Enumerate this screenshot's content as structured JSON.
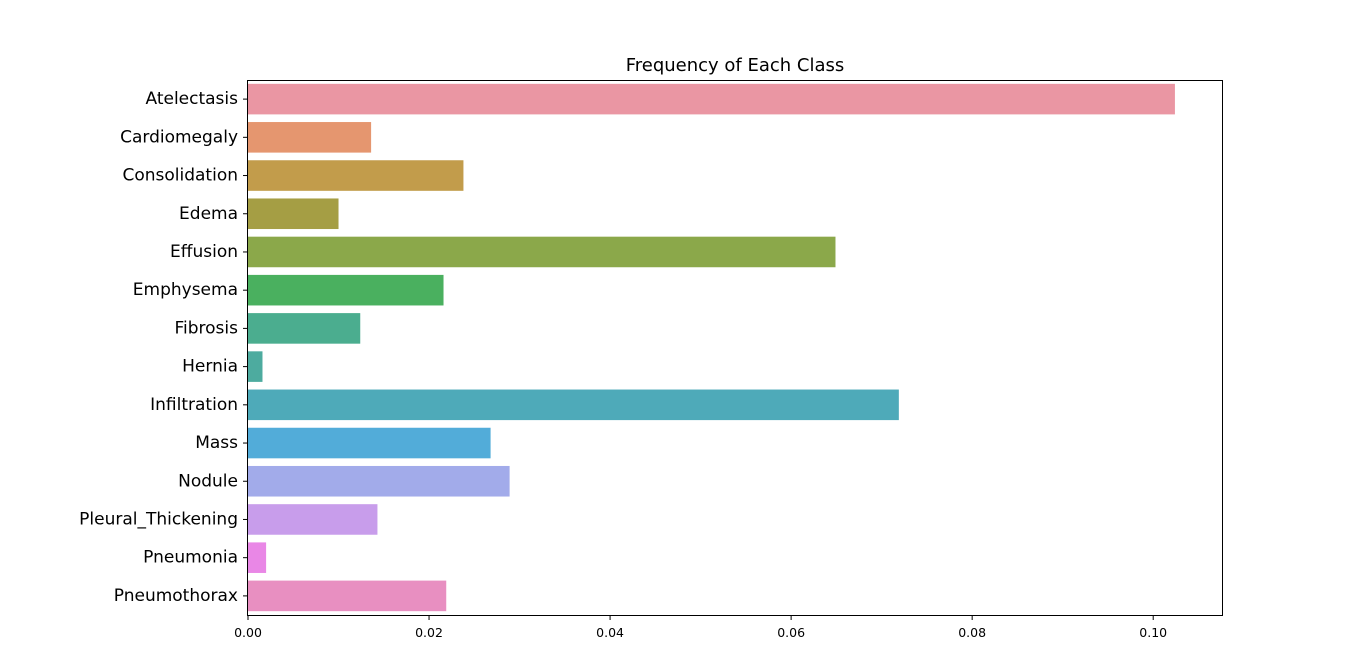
{
  "chart_data": {
    "type": "bar",
    "orientation": "horizontal",
    "title": "Frequency of Each Class",
    "xlabel": "",
    "ylabel": "",
    "xlim": [
      0,
      0.1076
    ],
    "x_ticks": [
      0.0,
      0.02,
      0.04,
      0.06,
      0.08,
      0.1
    ],
    "x_tick_labels": [
      "0.00",
      "0.02",
      "0.04",
      "0.06",
      "0.08",
      "0.10"
    ],
    "grid": false,
    "legend": "none",
    "categories": [
      "Atelectasis",
      "Cardiomegaly",
      "Consolidation",
      "Edema",
      "Effusion",
      "Emphysema",
      "Fibrosis",
      "Hernia",
      "Infiltration",
      "Mass",
      "Nodule",
      "Pleural_Thickening",
      "Pneumonia",
      "Pneumothorax"
    ],
    "values": [
      0.1024,
      0.0136,
      0.0238,
      0.01,
      0.0649,
      0.0216,
      0.0124,
      0.0016,
      0.0719,
      0.0268,
      0.0289,
      0.0143,
      0.002,
      0.0219
    ],
    "colors": [
      "#ea96a3",
      "#e5966f",
      "#c29c4b",
      "#a59e44",
      "#8ba84a",
      "#4ab05f",
      "#4bad8f",
      "#4dab9f",
      "#4eaab9",
      "#52acd9",
      "#a2abea",
      "#c89deb",
      "#e987e6",
      "#e88fc1"
    ]
  }
}
